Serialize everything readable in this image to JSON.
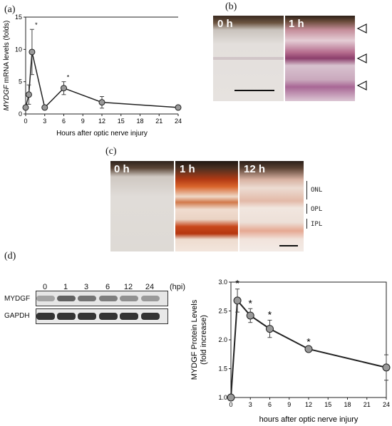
{
  "panels": {
    "a": {
      "label": "(a)",
      "ylabel_italic": "MYDGF",
      "ylabel_rest": " mRNA levels (folds)",
      "xlabel": "Hours after optic nerve injury",
      "xticks": [
        "0",
        "3",
        "6",
        "9",
        "12",
        "15",
        "18",
        "21",
        "24"
      ],
      "yticks": [
        "0",
        "5",
        "10",
        "15"
      ]
    },
    "b": {
      "label": "(b)",
      "time_labels": [
        "0 h",
        "1 h"
      ]
    },
    "c": {
      "label": "(c)",
      "time_labels": [
        "0 h",
        "1 h",
        "12 h"
      ],
      "layers": [
        "ONL",
        "OPL",
        "IPL"
      ]
    },
    "d": {
      "label": "(d)",
      "lane_labels": [
        "0",
        "1",
        "3",
        "6",
        "12",
        "24"
      ],
      "unit": "(hpi)",
      "rows": [
        "MYDGF",
        "GAPDH"
      ],
      "ylabel_line1": "MYDGF Protein Levels",
      "ylabel_line2": "(fold increase)",
      "xlabel": "hours after optic nerve injury",
      "xticks": [
        "0",
        "3",
        "6",
        "9",
        "12",
        "15",
        "18",
        "21",
        "24"
      ],
      "yticks": [
        "1.0",
        "1.5",
        "2.0",
        "2.5",
        "3.0"
      ]
    }
  },
  "chart_data": [
    {
      "type": "line",
      "panel": "a",
      "x": [
        0,
        0.5,
        1,
        3,
        6,
        12,
        24
      ],
      "values": [
        1.0,
        3.0,
        9.6,
        1.0,
        4.0,
        1.8,
        1.0
      ],
      "err": [
        0,
        1.5,
        3.5,
        0,
        1.0,
        0.9,
        0
      ],
      "significant": [
        false,
        false,
        true,
        false,
        true,
        false,
        false
      ],
      "xlabel": "Hours after optic nerve injury",
      "ylabel": "MYDGF mRNA levels (folds)",
      "xlim": [
        0,
        24
      ],
      "ylim": [
        0,
        15
      ],
      "grid": false
    },
    {
      "type": "line",
      "panel": "d",
      "x": [
        0,
        1,
        3,
        6,
        12,
        24
      ],
      "values": [
        1.0,
        2.68,
        2.42,
        2.19,
        1.84,
        1.52
      ],
      "err": [
        0,
        0.2,
        0.12,
        0.15,
        0.03,
        0.22
      ],
      "significant": [
        false,
        true,
        true,
        true,
        true,
        false
      ],
      "xlabel": "hours after optic nerve injury",
      "ylabel": "MYDGF Protein Levels (fold increase)",
      "xlim": [
        0,
        24
      ],
      "ylim": [
        1.0,
        3.0
      ],
      "grid": false
    }
  ]
}
